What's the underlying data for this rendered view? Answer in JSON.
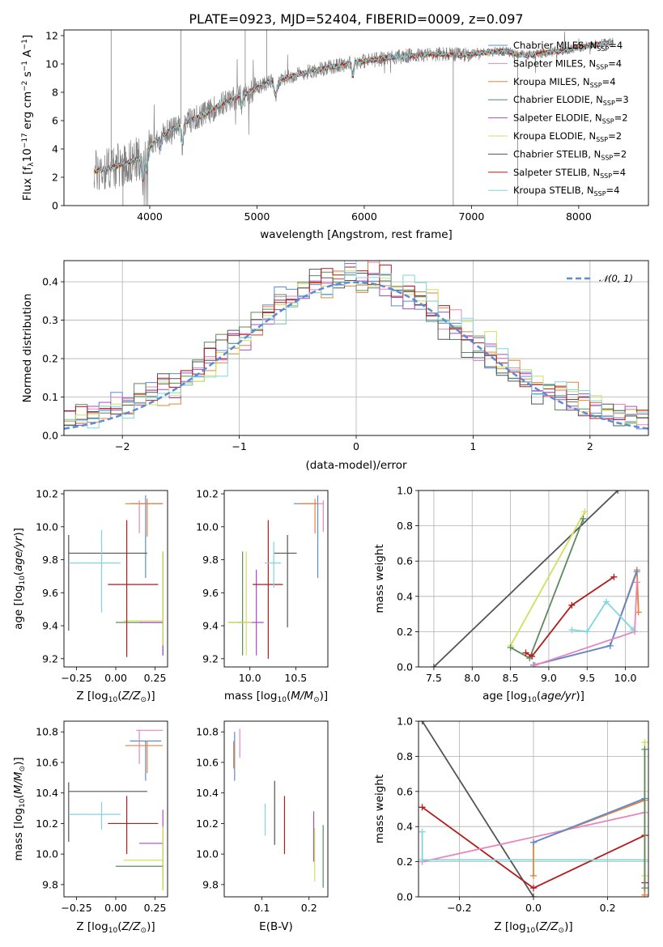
{
  "figure": {
    "title": "PLATE=0923, MJD=52404, FIBERID=0009, z=0.097"
  },
  "colors": {
    "Chabrier MILES": "#5b8bd6",
    "Salpeter MILES": "#e885c0",
    "Kroupa MILES": "#e8823a",
    "Chabrier ELODIE": "#5a8a5e",
    "Salpeter ELODIE": "#a64fc0",
    "Kroupa ELODIE": "#cfe05a",
    "Chabrier STELIB": "#555555",
    "Salpeter STELIB": "#b31c1c",
    "Kroupa STELIB": "#7fd6de",
    "data": "#808080",
    "normal": "#5b8bd6"
  },
  "chart_data": [
    {
      "id": "spectrum",
      "type": "line",
      "xlabel": "wavelength [Angstrom, rest frame]",
      "ylabel": "Flux [f_λ 10^-17 erg cm^-2 s^-1 A^-1]",
      "xlim": [
        3200,
        8650
      ],
      "ylim": [
        0,
        12.4
      ],
      "xticks": [
        4000,
        5000,
        6000,
        7000,
        8000
      ],
      "yticks": [
        0,
        2,
        4,
        6,
        8,
        10,
        12
      ],
      "legend_position": "top-right",
      "legend": [
        {
          "model": "Chabrier MILES",
          "nssp": "4"
        },
        {
          "model": "Salpeter MILES",
          "nssp": "4"
        },
        {
          "model": "Kroupa MILES",
          "nssp": "4"
        },
        {
          "model": "Chabrier ELODIE",
          "nssp": "3"
        },
        {
          "model": "Salpeter ELODIE",
          "nssp": "2"
        },
        {
          "model": "Kroupa ELODIE",
          "nssp": "2"
        },
        {
          "model": "Chabrier STELIB",
          "nssp": "2"
        },
        {
          "model": "Salpeter STELIB",
          "nssp": "4"
        },
        {
          "model": "Kroupa STELIB",
          "nssp": "4"
        }
      ],
      "continuum_x": [
        3480,
        3700,
        3900,
        4100,
        4300,
        4500,
        4700,
        4900,
        5100,
        5300,
        5500,
        5700,
        5900,
        6100,
        6300,
        6500,
        6700,
        6900,
        7100,
        7300,
        7500,
        7700,
        7900,
        8100,
        8300
      ],
      "continuum_y": [
        2.4,
        2.8,
        3.3,
        4.9,
        5.8,
        6.4,
        7.3,
        7.9,
        8.7,
        9.1,
        9.5,
        9.8,
        10.1,
        10.3,
        10.5,
        10.6,
        10.7,
        10.6,
        10.8,
        10.9,
        10.6,
        10.8,
        11.0,
        11.3,
        11.5
      ]
    },
    {
      "id": "residuals",
      "type": "histogram",
      "xlabel": "(data-model)/error",
      "ylabel": "Normed distribution",
      "xlim": [
        -2.5,
        2.5
      ],
      "ylim": [
        0,
        0.455
      ],
      "xticks": [
        -2,
        -1,
        0,
        1,
        2
      ],
      "yticks": [
        0.0,
        0.1,
        0.2,
        0.3,
        0.4
      ],
      "bin_width": 0.1,
      "legend_position": "top-right",
      "reference_label": "𝒩(0, 1)"
    },
    {
      "id": "age-vs-Z",
      "type": "scatter",
      "xlabel": "Z [log10(Z/Z☉)]",
      "ylabel": "age [log10(age/yr)]",
      "xlim": [
        -0.33,
        0.33
      ],
      "ylim": [
        9.15,
        10.22
      ],
      "xticks": [
        -0.25,
        0.0,
        0.25
      ],
      "xticklabels": [
        "−0.25",
        "0.00",
        "0.25"
      ],
      "yticks": [
        9.2,
        9.4,
        9.6,
        9.8,
        10.0,
        10.2
      ],
      "points": [
        {
          "model": "Chabrier MILES",
          "x": 0.19,
          "y": 10.14,
          "xerr": [
            0.1,
            0.1
          ],
          "yerr": [
            0.45,
            0.05
          ]
        },
        {
          "model": "Salpeter MILES",
          "x": 0.15,
          "y": 10.14,
          "xerr": [
            0.03,
            0.15
          ],
          "yerr": [
            0.18,
            0.02
          ]
        },
        {
          "model": "Kroupa MILES",
          "x": 0.2,
          "y": 10.14,
          "xerr": [
            0.14,
            0.1
          ],
          "yerr": [
            0.2,
            0.03
          ]
        },
        {
          "model": "Chabrier ELODIE",
          "x": 0.3,
          "y": 9.42,
          "xerr": [
            0.3,
            0.0
          ],
          "yerr": [
            0.2,
            0.43
          ]
        },
        {
          "model": "Salpeter ELODIE",
          "x": 0.3,
          "y": 9.42,
          "xerr": [
            0.15,
            0.0
          ],
          "yerr": [
            0.2,
            0.42
          ]
        },
        {
          "model": "Kroupa ELODIE",
          "x": 0.3,
          "y": 9.43,
          "xerr": [
            0.25,
            0.0
          ],
          "yerr": [
            0.15,
            0.42
          ]
        },
        {
          "model": "Chabrier STELIB",
          "x": -0.3,
          "y": 9.84,
          "xerr": [
            0.0,
            0.5
          ],
          "yerr": [
            0.47,
            0.11
          ]
        },
        {
          "model": "Salpeter STELIB",
          "x": 0.07,
          "y": 9.65,
          "xerr": [
            0.12,
            0.2
          ],
          "yerr": [
            0.44,
            0.39
          ]
        },
        {
          "model": "Kroupa STELIB",
          "x": -0.09,
          "y": 9.78,
          "xerr": [
            0.21,
            0.12
          ],
          "yerr": [
            0.3,
            0.2
          ]
        }
      ]
    },
    {
      "id": "age-vs-mass",
      "type": "scatter",
      "xlabel": "mass [log10(M/M☉)]",
      "xlim": [
        9.72,
        10.85
      ],
      "ylim": [
        9.15,
        10.22
      ],
      "xticks": [
        10.0,
        10.5
      ],
      "xticklabels": [
        "10.0",
        "10.5"
      ],
      "yticks": [
        9.2,
        9.4,
        9.6,
        9.8,
        10.0,
        10.2
      ],
      "points": [
        {
          "model": "Chabrier MILES",
          "x": 10.74,
          "y": 10.14,
          "xerr": [
            0.26,
            0.0
          ],
          "yerr": [
            0.45,
            0.05
          ]
        },
        {
          "model": "Salpeter MILES",
          "x": 10.8,
          "y": 10.14,
          "xerr": [
            0.22,
            0.0
          ],
          "yerr": [
            0.17,
            0.02
          ]
        },
        {
          "model": "Kroupa MILES",
          "x": 10.71,
          "y": 10.14,
          "xerr": [
            0.18,
            0.03
          ],
          "yerr": [
            0.18,
            0.03
          ]
        },
        {
          "model": "Chabrier ELODIE",
          "x": 9.92,
          "y": 9.42,
          "xerr": [
            0.15,
            0.0
          ],
          "yerr": [
            0.2,
            0.43
          ]
        },
        {
          "model": "Salpeter ELODIE",
          "x": 10.07,
          "y": 9.42,
          "xerr": [
            0.2,
            0.08
          ],
          "yerr": [
            0.2,
            0.32
          ]
        },
        {
          "model": "Kroupa ELODIE",
          "x": 9.96,
          "y": 9.42,
          "xerr": [
            0.2,
            0.06
          ],
          "yerr": [
            0.2,
            0.43
          ]
        },
        {
          "model": "Chabrier STELIB",
          "x": 10.41,
          "y": 9.84,
          "xerr": [
            0.15,
            0.1
          ],
          "yerr": [
            0.45,
            0.11
          ]
        },
        {
          "model": "Salpeter STELIB",
          "x": 10.2,
          "y": 9.65,
          "xerr": [
            0.17,
            0.16
          ],
          "yerr": [
            0.45,
            0.39
          ]
        },
        {
          "model": "Kroupa STELIB",
          "x": 10.26,
          "y": 9.78,
          "xerr": [
            0.1,
            0.08
          ],
          "yerr": [
            0.15,
            0.13
          ]
        }
      ]
    },
    {
      "id": "weight-vs-age",
      "type": "line",
      "xlabel": "age [log10(age/yr)]",
      "ylabel": "mass weight",
      "xlim": [
        7.3,
        10.3
      ],
      "ylim": [
        0,
        1.0
      ],
      "xticks": [
        7.5,
        8.0,
        8.5,
        9.0,
        9.5,
        10.0
      ],
      "xticklabels": [
        "7.5",
        "8.0",
        "8.5",
        "9.0",
        "9.5",
        "10.0"
      ],
      "yticks": [
        0.0,
        0.2,
        0.4,
        0.6,
        0.8,
        1.0
      ],
      "series": [
        {
          "model": "Chabrier STELIB",
          "x": [
            7.5,
            9.9
          ],
          "y": [
            0.0,
            1.0
          ]
        },
        {
          "model": "Kroupa ELODIE",
          "x": [
            8.5,
            9.47
          ],
          "y": [
            0.12,
            0.88
          ]
        },
        {
          "model": "Chabrier ELODIE",
          "x": [
            8.5,
            8.75,
            9.45
          ],
          "y": [
            0.11,
            0.05,
            0.84
          ]
        },
        {
          "model": "Salpeter STELIB",
          "x": [
            8.7,
            8.78,
            9.3,
            9.85
          ],
          "y": [
            0.08,
            0.06,
            0.35,
            0.51
          ]
        },
        {
          "model": "Kroupa MILES",
          "x": [
            8.8,
            9.8,
            10.15,
            10.17
          ],
          "y": [
            0.01,
            0.12,
            0.55,
            0.31
          ]
        },
        {
          "model": "Chabrier MILES",
          "x": [
            8.8,
            9.8,
            10.15
          ],
          "y": [
            0.01,
            0.12,
            0.54
          ]
        },
        {
          "model": "Salpeter MILES",
          "x": [
            8.82,
            10.12,
            10.15
          ],
          "y": [
            0.01,
            0.2,
            0.48
          ]
        },
        {
          "model": "Kroupa STELIB",
          "x": [
            9.3,
            9.5,
            9.75,
            10.1
          ],
          "y": [
            0.21,
            0.2,
            0.37,
            0.21
          ]
        }
      ]
    },
    {
      "id": "mass-vs-Z",
      "type": "scatter",
      "xlabel": "Z [log10(Z/Z☉)]",
      "ylabel": "mass [log10(M/M☉)]",
      "xlim": [
        -0.33,
        0.33
      ],
      "ylim": [
        9.72,
        10.87
      ],
      "xticks": [
        -0.25,
        0.0,
        0.25
      ],
      "xticklabels": [
        "−0.25",
        "0.00",
        "0.25"
      ],
      "yticks": [
        9.8,
        10.0,
        10.2,
        10.4,
        10.6,
        10.8
      ],
      "points": [
        {
          "model": "Chabrier MILES",
          "x": 0.19,
          "y": 10.74,
          "xerr": [
            0.1,
            0.1
          ],
          "yerr": [
            0.26,
            0.0
          ]
        },
        {
          "model": "Salpeter MILES",
          "x": 0.15,
          "y": 10.81,
          "xerr": [
            0.02,
            0.15
          ],
          "yerr": [
            0.22,
            0.0
          ]
        },
        {
          "model": "Kroupa MILES",
          "x": 0.2,
          "y": 10.71,
          "xerr": [
            0.14,
            0.1
          ],
          "yerr": [
            0.18,
            0.03
          ]
        },
        {
          "model": "Chabrier ELODIE",
          "x": 0.3,
          "y": 9.92,
          "xerr": [
            0.3,
            0.0
          ],
          "yerr": [
            0.15,
            0.0
          ]
        },
        {
          "model": "Salpeter ELODIE",
          "x": 0.3,
          "y": 10.07,
          "xerr": [
            0.15,
            0.0
          ],
          "yerr": [
            0.2,
            0.22
          ]
        },
        {
          "model": "Kroupa ELODIE",
          "x": 0.3,
          "y": 9.96,
          "xerr": [
            0.25,
            0.0
          ],
          "yerr": [
            0.2,
            0.22
          ]
        },
        {
          "model": "Chabrier STELIB",
          "x": -0.3,
          "y": 10.41,
          "xerr": [
            0.0,
            0.5
          ],
          "yerr": [
            0.33,
            0.06
          ]
        },
        {
          "model": "Salpeter STELIB",
          "x": 0.07,
          "y": 10.2,
          "xerr": [
            0.12,
            0.2
          ],
          "yerr": [
            0.2,
            0.18
          ]
        },
        {
          "model": "Kroupa STELIB",
          "x": -0.09,
          "y": 10.26,
          "xerr": [
            0.21,
            0.12
          ],
          "yerr": [
            0.1,
            0.08
          ]
        }
      ]
    },
    {
      "id": "mass-vs-EBV",
      "type": "scatter",
      "xlabel": "E(B-V)",
      "xlim": [
        0.02,
        0.24
      ],
      "ylim": [
        9.72,
        10.87
      ],
      "xticks": [
        0.1,
        0.2
      ],
      "xticklabels": [
        "0.1",
        "0.2"
      ],
      "yticks": [
        9.8,
        10.0,
        10.2,
        10.4,
        10.6,
        10.8
      ],
      "points": [
        {
          "model": "Chabrier MILES",
          "x": 0.042,
          "y": 10.74,
          "yerr": [
            0.26,
            0.06
          ]
        },
        {
          "model": "Salpeter MILES",
          "x": 0.053,
          "y": 10.75,
          "yerr": [
            0.12,
            0.07
          ]
        },
        {
          "model": "Kroupa MILES",
          "x": 0.04,
          "y": 10.71,
          "yerr": [
            0.15,
            0.03
          ]
        },
        {
          "model": "Chabrier ELODIE",
          "x": 0.23,
          "y": 9.98,
          "yerr": [
            0.2,
            0.21
          ]
        },
        {
          "model": "Salpeter ELODIE",
          "x": 0.21,
          "y": 10.12,
          "yerr": [
            0.17,
            0.16
          ]
        },
        {
          "model": "Kroupa ELODIE",
          "x": 0.212,
          "y": 10.0,
          "yerr": [
            0.18,
            0.17
          ]
        },
        {
          "model": "Chabrier STELIB",
          "x": 0.127,
          "y": 10.3,
          "yerr": [
            0.24,
            0.18
          ]
        },
        {
          "model": "Salpeter STELIB",
          "x": 0.148,
          "y": 10.19,
          "yerr": [
            0.19,
            0.19
          ]
        },
        {
          "model": "Kroupa STELIB",
          "x": 0.107,
          "y": 10.23,
          "yerr": [
            0.11,
            0.1
          ]
        }
      ]
    },
    {
      "id": "weight-vs-Z",
      "type": "line",
      "xlabel": "Z [log10(Z/Z☉)]",
      "ylabel": "mass weight",
      "xlim": [
        -0.31,
        0.31
      ],
      "ylim": [
        0,
        1.0
      ],
      "xticks": [
        -0.2,
        0.0,
        0.2
      ],
      "xticklabels": [
        "−0.2",
        "0.0",
        "0.2"
      ],
      "yticks": [
        0.0,
        0.2,
        0.4,
        0.6,
        0.8,
        1.0
      ],
      "series": [
        {
          "model": "Chabrier STELIB",
          "x": [
            -0.3,
            0.0
          ],
          "y": [
            1.0,
            0.0
          ]
        },
        {
          "model": "Salpeter STELIB",
          "x": [
            -0.3,
            0.0,
            0.3,
            0.3
          ],
          "y": [
            0.51,
            0.05,
            0.35,
            0.08
          ]
        },
        {
          "model": "Salpeter MILES",
          "x": [
            -0.3,
            0.3
          ],
          "y": [
            0.2,
            0.48
          ]
        },
        {
          "model": "Kroupa STELIB",
          "x": [
            -0.3,
            -0.3,
            0.3
          ],
          "y": [
            0.37,
            0.21,
            0.21
          ]
        },
        {
          "model": "Kroupa MILES",
          "x": [
            0.0,
            0.0,
            0.3,
            0.3
          ],
          "y": [
            0.12,
            0.31,
            0.55,
            0.01
          ]
        },
        {
          "model": "Chabrier MILES",
          "x": [
            0.0,
            0.3
          ],
          "y": [
            0.31,
            0.56
          ]
        },
        {
          "model": "Kroupa ELODIE",
          "x": [
            0.3,
            0.3
          ],
          "y": [
            0.12,
            0.88
          ]
        },
        {
          "model": "Chabrier ELODIE",
          "x": [
            0.3,
            0.3
          ],
          "y": [
            0.05,
            0.84
          ]
        }
      ]
    }
  ]
}
